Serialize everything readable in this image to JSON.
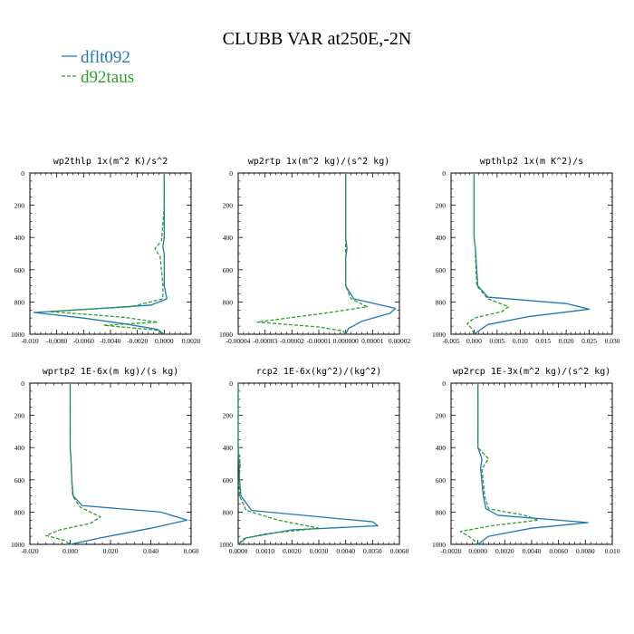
{
  "figure": {
    "title": "CLUBB VAR at250E,-2N",
    "legend": [
      {
        "label": "dflt092",
        "color": "#1f77b4",
        "dash": ""
      },
      {
        "label": "d92taus",
        "color": "#2ca02c",
        "dash": "4,2"
      }
    ]
  },
  "chart_data": [
    {
      "type": "line",
      "title": "wp2thlp   1x(m^2 K)/s^2",
      "xlim": [
        -0.01,
        0.002
      ],
      "ylim": [
        1000,
        0
      ],
      "xticks": [
        "-0.010",
        "-0.0080",
        "-0.0060",
        "-0.0040",
        "-0.0020",
        "0.0000",
        "0.0020"
      ],
      "xtick_values": [
        -0.01,
        -0.008,
        -0.006,
        -0.004,
        -0.002,
        0.0,
        0.002
      ],
      "yticks": [
        "0",
        "200",
        "400",
        "600",
        "800",
        "1000"
      ],
      "series": [
        {
          "name": "dflt092",
          "x": [
            0.0,
            0.0,
            0.0,
            -0.0001,
            0.0,
            0.0,
            0.0002,
            -0.001,
            -0.0097,
            -0.006,
            -0.003,
            -0.0005,
            0.0
          ],
          "y": [
            0,
            200,
            400,
            460,
            500,
            700,
            780,
            820,
            865,
            900,
            935,
            970,
            1000
          ]
        },
        {
          "name": "d92taus",
          "x": [
            0.0,
            0.0,
            -0.0002,
            -0.0007,
            -0.0003,
            -0.0001,
            -0.0001,
            -0.0025,
            -0.0085,
            -0.003,
            -0.0005,
            -0.0045,
            -0.0005,
            -0.0001
          ],
          "y": [
            0,
            200,
            420,
            470,
            520,
            700,
            780,
            830,
            860,
            895,
            925,
            945,
            975,
            1000
          ]
        }
      ]
    },
    {
      "type": "line",
      "title": "wp2rtp   1x(m^2 kg)/(s^2 kg)",
      "xlim": [
        -4e-05,
        2e-05
      ],
      "ylim": [
        1000,
        0
      ],
      "xticks": [
        "-0.00004",
        "-0.00003",
        "-0.00002",
        "-0.00001",
        "0.000000",
        "0.00001",
        "0.00002"
      ],
      "xtick_values": [
        -4e-05,
        -3e-05,
        -2e-05,
        -1e-05,
        0.0,
        1e-05,
        2e-05
      ],
      "yticks": [
        "0",
        "200",
        "400",
        "600",
        "800",
        "1000"
      ],
      "series": [
        {
          "name": "dflt092",
          "x": [
            0.0,
            0.0,
            0.0,
            5e-07,
            0.0,
            0.0,
            3e-06,
            1.85e-05,
            1.65e-05,
            6e-06,
            1e-06,
            0.0
          ],
          "y": [
            0,
            200,
            400,
            470,
            520,
            700,
            780,
            840,
            870,
            920,
            965,
            1000
          ]
        },
        {
          "name": "d92taus",
          "x": [
            0.0,
            0.0,
            0.0,
            0.0,
            0.0,
            0.0,
            2e-06,
            8e-06,
            -8e-06,
            -3.3e-05,
            -1e-05,
            -1e-06,
            0.0
          ],
          "y": [
            0,
            200,
            400,
            470,
            520,
            700,
            780,
            830,
            870,
            925,
            955,
            980,
            1000
          ]
        }
      ]
    },
    {
      "type": "line",
      "title": "wpthlp2   1x(m K^2)/s",
      "xlim": [
        -0.005,
        0.03
      ],
      "ylim": [
        1000,
        0
      ],
      "xticks": [
        "-0.005",
        "0.000",
        "0.005",
        "0.010",
        "0.015",
        "0.020",
        "0.025",
        "0.030"
      ],
      "xtick_values": [
        -0.005,
        0.0,
        0.005,
        0.01,
        0.015,
        0.02,
        0.025,
        0.03
      ],
      "yticks": [
        "0",
        "200",
        "400",
        "600",
        "800",
        "1000"
      ],
      "series": [
        {
          "name": "dflt092",
          "x": [
            0.0,
            0.0,
            0.0,
            0.0003,
            0.0004,
            0.0008,
            0.003,
            0.02,
            0.025,
            0.012,
            0.003,
            0.0
          ],
          "y": [
            0,
            200,
            400,
            470,
            520,
            700,
            770,
            810,
            845,
            890,
            940,
            1000
          ]
        },
        {
          "name": "d92taus",
          "x": [
            0.0,
            0.0,
            0.0,
            0.0003,
            0.0003,
            0.0006,
            0.003,
            0.0075,
            0.006,
            0.0,
            -0.0015,
            -0.0005,
            0.0
          ],
          "y": [
            0,
            200,
            400,
            470,
            520,
            700,
            780,
            830,
            860,
            900,
            935,
            965,
            1000
          ]
        }
      ]
    },
    {
      "type": "line",
      "title": "wprtp2   1E-6x(m kg)/(s kg)",
      "xlim": [
        -0.02,
        0.06
      ],
      "ylim": [
        1000,
        0
      ],
      "xticks": [
        "-0.020",
        "0.000",
        "0.020",
        "0.040",
        "0.060"
      ],
      "xtick_values": [
        -0.02,
        0.0,
        0.02,
        0.04,
        0.06
      ],
      "yticks": [
        "0",
        "200",
        "400",
        "600",
        "800",
        "1000"
      ],
      "series": [
        {
          "name": "dflt092",
          "x": [
            0.0,
            0.0,
            0.0,
            0.0005,
            0.0008,
            0.0015,
            0.006,
            0.045,
            0.058,
            0.04,
            0.015,
            0.0
          ],
          "y": [
            0,
            200,
            400,
            500,
            600,
            700,
            760,
            800,
            850,
            900,
            960,
            1000
          ]
        },
        {
          "name": "d92taus",
          "x": [
            0.0,
            0.0,
            0.0,
            0.0005,
            0.0008,
            0.0012,
            0.005,
            0.015,
            0.01,
            -0.005,
            -0.012,
            -0.003,
            0.0
          ],
          "y": [
            0,
            200,
            400,
            500,
            600,
            700,
            770,
            830,
            870,
            910,
            945,
            975,
            1000
          ]
        }
      ]
    },
    {
      "type": "line",
      "title": "rcp2   1E-6x(kg^2)/(kg^2)",
      "xlim": [
        0.0,
        0.006
      ],
      "ylim": [
        1000,
        0
      ],
      "xticks": [
        "0.0000",
        "0.0010",
        "0.0020",
        "0.0030",
        "0.0040",
        "0.0050",
        "0.0060"
      ],
      "xtick_values": [
        0.0,
        0.001,
        0.002,
        0.003,
        0.004,
        0.005,
        0.006
      ],
      "yticks": [
        "0",
        "200",
        "400",
        "600",
        "800",
        "1000"
      ],
      "series": [
        {
          "name": "dflt092",
          "x": [
            0.0,
            0.0,
            0.0,
            3e-05,
            5e-05,
            0.0001,
            0.0005,
            0.005,
            0.0052,
            0.002,
            0.0003,
            0.0
          ],
          "y": [
            0,
            200,
            400,
            500,
            600,
            700,
            790,
            860,
            885,
            910,
            960,
            1000
          ]
        },
        {
          "name": "d92taus",
          "x": [
            0.0,
            0.0,
            0.0,
            8e-05,
            3e-05,
            5e-05,
            0.0003,
            0.0015,
            0.003,
            0.001,
            0.0002,
            0.0
          ],
          "y": [
            0,
            200,
            400,
            500,
            600,
            700,
            790,
            850,
            900,
            935,
            965,
            1000
          ]
        }
      ]
    },
    {
      "type": "line",
      "title": "wp2rcp   1E-3x(m^2 kg)/(s^2 kg)",
      "xlim": [
        -0.002,
        0.01
      ],
      "ylim": [
        1000,
        0
      ],
      "xticks": [
        "-0.0020",
        "0.0000",
        "0.0020",
        "0.0040",
        "0.0060",
        "0.0080",
        "0.010"
      ],
      "xtick_values": [
        -0.002,
        0.0,
        0.002,
        0.004,
        0.006,
        0.008,
        0.01
      ],
      "yticks": [
        "0",
        "200",
        "400",
        "600",
        "800",
        "1000"
      ],
      "series": [
        {
          "name": "dflt092",
          "x": [
            0.0,
            0.0,
            0.0,
            0.0003,
            0.0002,
            0.0004,
            0.0006,
            0.0015,
            0.0082,
            0.004,
            0.0008,
            0.0
          ],
          "y": [
            0,
            200,
            400,
            470,
            530,
            700,
            780,
            820,
            865,
            900,
            950,
            1000
          ]
        },
        {
          "name": "d92taus",
          "x": [
            0.0,
            0.0,
            0.0,
            0.0008,
            0.0003,
            0.0005,
            0.0008,
            0.0035,
            0.0045,
            0.001,
            -0.0013,
            -0.0005,
            0.0
          ],
          "y": [
            0,
            200,
            400,
            470,
            530,
            700,
            780,
            820,
            850,
            885,
            920,
            960,
            1000
          ]
        }
      ]
    }
  ]
}
